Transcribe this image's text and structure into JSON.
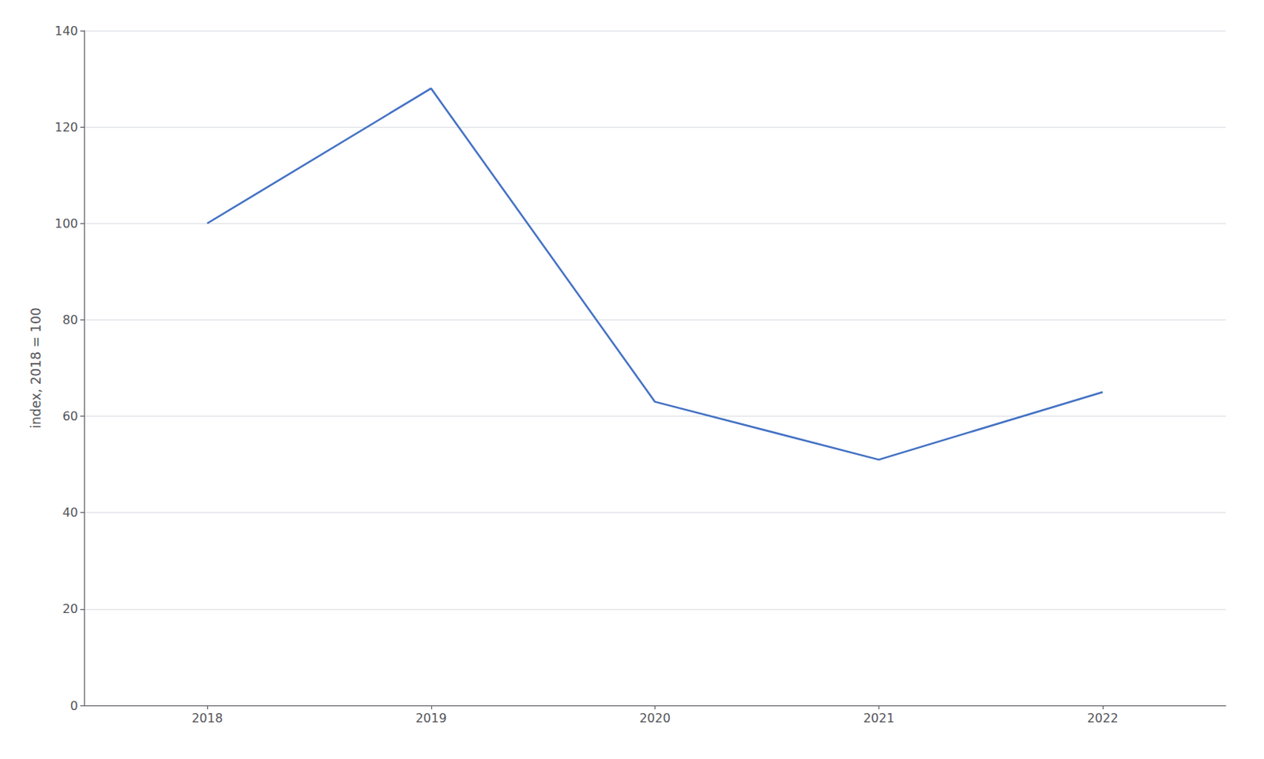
{
  "chart_data": {
    "type": "line",
    "ylabel": "index, 2018 = 100",
    "x": [
      2018,
      2019,
      2020,
      2021,
      2022
    ],
    "values": [
      100,
      128,
      63,
      51,
      65
    ],
    "color": "#4472C4",
    "xlim": [
      2017.45,
      2022.55
    ],
    "xticks": [
      2018,
      2019,
      2020,
      2021,
      2022
    ],
    "ylim": [
      0,
      140
    ],
    "yticks": [
      0,
      20,
      40,
      60,
      80,
      100,
      120,
      140
    ],
    "grid": true
  }
}
